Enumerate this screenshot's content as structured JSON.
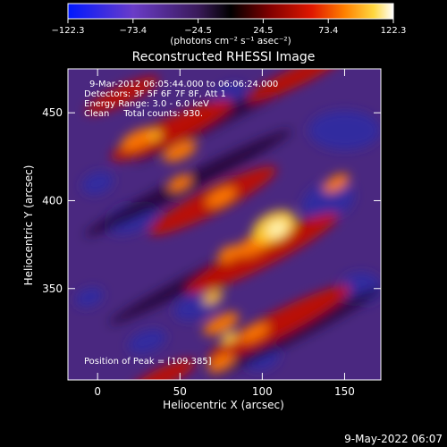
{
  "chart_data": {
    "type": "heatmap",
    "title": "Reconstructed RHESSI Image",
    "xlabel": "Heliocentric X (arcsec)",
    "ylabel": "Heliocentric Y (arcsec)",
    "x_ticks": [
      "0",
      "50",
      "100",
      "150"
    ],
    "y_ticks": [
      "350",
      "400",
      "450"
    ],
    "xlim": [
      -18,
      172
    ],
    "ylim": [
      298,
      475
    ],
    "colorbar": {
      "ticks": [
        "−122.3",
        "−73.4",
        "−24.5",
        "24.5",
        "73.4",
        "122.3"
      ],
      "range": [
        -122.3,
        122.3
      ],
      "unit_label": "(photons cm⁻² s⁻¹ asec⁻²)"
    },
    "info_lines": [
      "9-Mar-2012 06:05:44.000 to 06:06:24.000",
      "Detectors: 3F 5F 6F 7F 8F, Att 1",
      "Energy Range: 3.0 - 6.0 keV",
      "Clean     Total counts: 930."
    ],
    "peak_label": "Position of Peak = [109,385]",
    "peak": [
      109,
      385
    ],
    "peak_value": 122.3,
    "image_max": 122.3
  },
  "footer": {
    "timestamp": "9-May-2022 06:07"
  },
  "colors": {
    "background": "#000000",
    "text": "#ffffff",
    "colormap": [
      "#0000ff",
      "#6a3cb4",
      "#5a2a90",
      "#000000",
      "#700000",
      "#d01000",
      "#ff7000",
      "#ffd030",
      "#ffffff"
    ]
  }
}
